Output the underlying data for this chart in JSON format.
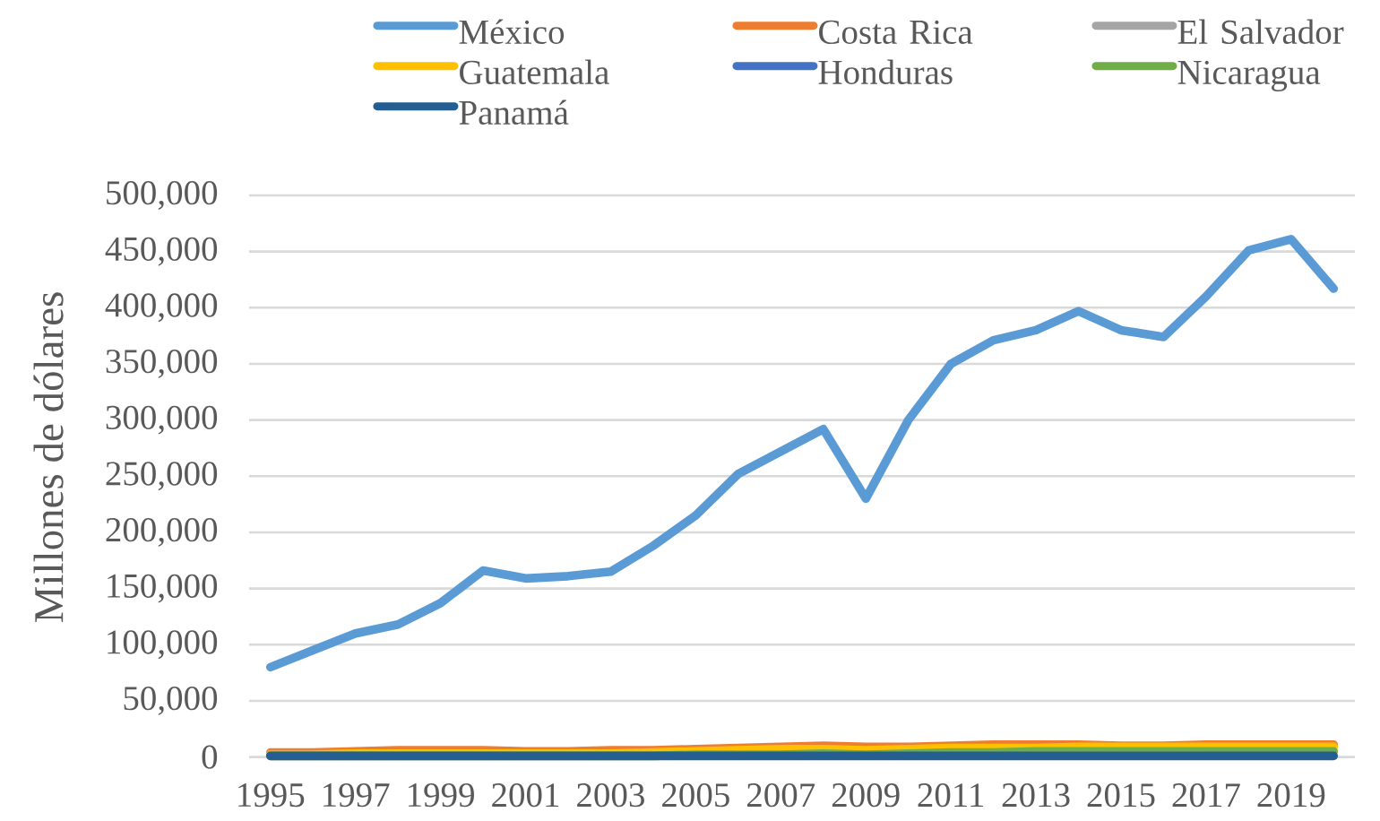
{
  "chart_data": {
    "type": "line",
    "ylabel": "Millones de dólares",
    "categories": [
      "1995",
      null,
      "1997",
      null,
      "1999",
      null,
      "2001",
      null,
      "2003",
      null,
      "2005",
      null,
      "2007",
      null,
      "2009",
      null,
      "2011",
      null,
      "2013",
      null,
      "2015",
      null,
      "2017",
      null,
      "2019",
      null
    ],
    "series": [
      {
        "name": "México",
        "color": "#5b9bd5",
        "values": [
          80000,
          95000,
          110000,
          118000,
          137000,
          166000,
          159000,
          161000,
          165000,
          188000,
          215000,
          252000,
          272000,
          292000,
          230000,
          300000,
          350000,
          371000,
          380000,
          397000,
          380000,
          374000,
          410000,
          451000,
          461000,
          417000
        ]
      },
      {
        "name": "Costa Rica",
        "color": "#ed7d31",
        "values": [
          4000,
          4000,
          5000,
          6000,
          6000,
          6000,
          5000,
          5000,
          6000,
          6000,
          7000,
          8000,
          9000,
          10000,
          9000,
          9000,
          10000,
          11000,
          11000,
          11000,
          10000,
          10000,
          11000,
          11000,
          11000,
          11000
        ]
      },
      {
        "name": "El Salvador",
        "color": "#a5a5a5",
        "values": [
          null,
          null,
          null,
          null,
          null,
          null,
          null,
          null,
          null,
          null,
          null,
          null,
          null,
          null,
          null,
          null,
          null,
          null,
          null,
          null,
          null,
          null,
          null,
          null,
          null,
          null
        ]
      },
      {
        "name": "Guatemala",
        "color": "#ffc000",
        "values": [
          2000,
          2000,
          3000,
          3000,
          3000,
          3000,
          3000,
          3000,
          3000,
          4000,
          5000,
          6000,
          7000,
          7000,
          6000,
          7000,
          8000,
          8000,
          8000,
          9000,
          9000,
          9000,
          9000,
          9000,
          9000,
          9000
        ]
      },
      {
        "name": "Honduras",
        "color": "#4472c4",
        "values": [
          null,
          null,
          null,
          null,
          null,
          null,
          null,
          null,
          null,
          null,
          null,
          null,
          null,
          null,
          null,
          null,
          null,
          null,
          null,
          null,
          null,
          null,
          null,
          null,
          null,
          null
        ]
      },
      {
        "name": "Nicaragua",
        "color": "#70ad47",
        "values": [
          1000,
          1000,
          1000,
          1000,
          1000,
          1000,
          1000,
          1000,
          1000,
          1000,
          2000,
          2000,
          2000,
          3000,
          2000,
          3000,
          4000,
          4000,
          5000,
          5000,
          5000,
          5000,
          5000,
          5000,
          5000,
          5000
        ]
      },
      {
        "name": "Panamá",
        "color": "#255e91",
        "values": [
          1000,
          1000,
          1000,
          1000,
          1000,
          1000,
          1000,
          1000,
          1000,
          1000,
          1000,
          1000,
          1000,
          1000,
          1000,
          1000,
          1000,
          1000,
          1000,
          1000,
          1000,
          1000,
          1000,
          1000,
          1000,
          1000
        ]
      }
    ],
    "ylim": [
      0,
      500000
    ],
    "yticks": [
      0,
      {
        "value": 50000,
        "label": "50,000"
      },
      {
        "value": 100000,
        "label": "100,000"
      },
      {
        "value": 150000,
        "label": "150,000"
      },
      {
        "value": 200000,
        "label": "200,000"
      },
      {
        "value": 250000,
        "label": "250,000"
      },
      {
        "value": 300000,
        "label": "300,000"
      },
      {
        "value": 350000,
        "label": "350,000"
      },
      {
        "value": 400000,
        "label": "400,000"
      },
      {
        "value": 450000,
        "label": "450,000"
      },
      {
        "value": 500000,
        "label": "500,000"
      }
    ],
    "grid": "y",
    "legend": "top"
  }
}
